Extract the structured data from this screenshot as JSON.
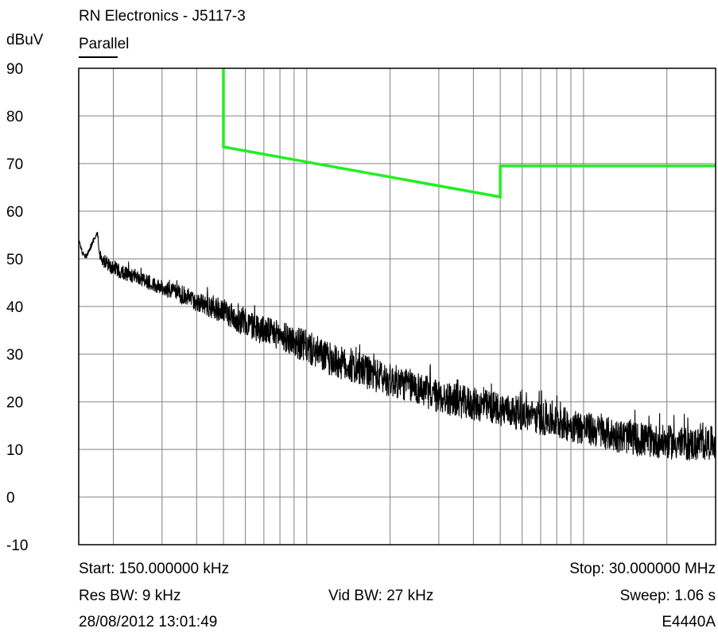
{
  "header": {
    "title": "RN Electronics - J5117-3",
    "trace_name": "Parallel",
    "y_unit": "dBuV"
  },
  "footer": {
    "start": "Start: 150.000000 kHz",
    "stop": "Stop: 30.000000 MHz",
    "res_bw": "Res BW: 9 kHz",
    "vid_bw": "Vid BW: 27 kHz",
    "sweep": "Sweep: 1.06 s",
    "timestamp": "28/08/2012 13:01:49",
    "instrument": "E4440A"
  },
  "colors": {
    "background": "#ffffff",
    "grid": "#808080",
    "trace": "#000000",
    "limit": "#22ee22"
  },
  "chart_data": {
    "type": "line",
    "x_scale": "log",
    "x_unit": "MHz",
    "xlim": [
      0.15,
      30
    ],
    "ylim": [
      -10,
      90
    ],
    "yticks": [
      90,
      80,
      70,
      60,
      50,
      40,
      30,
      20,
      10,
      0,
      -10
    ],
    "grid": true,
    "x_grid_lines": [
      0.2,
      0.3,
      0.4,
      0.5,
      0.6,
      0.7,
      0.8,
      0.9,
      1,
      2,
      3,
      4,
      5,
      6,
      7,
      8,
      9,
      10,
      20
    ],
    "series": [
      {
        "name": "Parallel",
        "role": "measurement",
        "x": [
          0.15,
          0.155,
          0.16,
          0.17,
          0.175,
          0.18,
          0.19,
          0.2,
          0.22,
          0.25,
          0.28,
          0.3,
          0.35,
          0.4,
          0.45,
          0.5,
          0.6,
          0.7,
          0.8,
          1.0,
          1.2,
          1.5,
          2.0,
          2.5,
          3.0,
          4.0,
          5.0,
          7.0,
          10.0,
          13.0,
          16.0,
          20.0,
          25.0,
          30.0
        ],
        "y": [
          54,
          51,
          50.5,
          54,
          55.5,
          50,
          49,
          48,
          47,
          46,
          44.5,
          44,
          42.5,
          41,
          40,
          39,
          36.5,
          35,
          34,
          31.5,
          29,
          27,
          24.5,
          23,
          21,
          19.5,
          18.5,
          16.5,
          14.5,
          13,
          12,
          11.5,
          11,
          11.5
        ],
        "noise_amplitude": [
          0.5,
          0.5,
          0.5,
          0.5,
          0.5,
          1.5,
          1.5,
          1.5,
          1.5,
          1.5,
          1.5,
          1.5,
          2.0,
          2.0,
          2.5,
          2.5,
          3.0,
          3.0,
          3.0,
          3.5,
          3.5,
          3.5,
          3.5,
          3.5,
          3.5,
          3.5,
          3.5,
          3.5,
          3.5,
          3.5,
          3.5,
          3.5,
          3.5,
          3.5
        ]
      },
      {
        "name": "Limit",
        "role": "limit",
        "x": [
          0.5,
          0.5,
          5.0,
          5.0,
          30.0
        ],
        "y": [
          90,
          73.5,
          63,
          69.5,
          69.5
        ]
      }
    ]
  }
}
